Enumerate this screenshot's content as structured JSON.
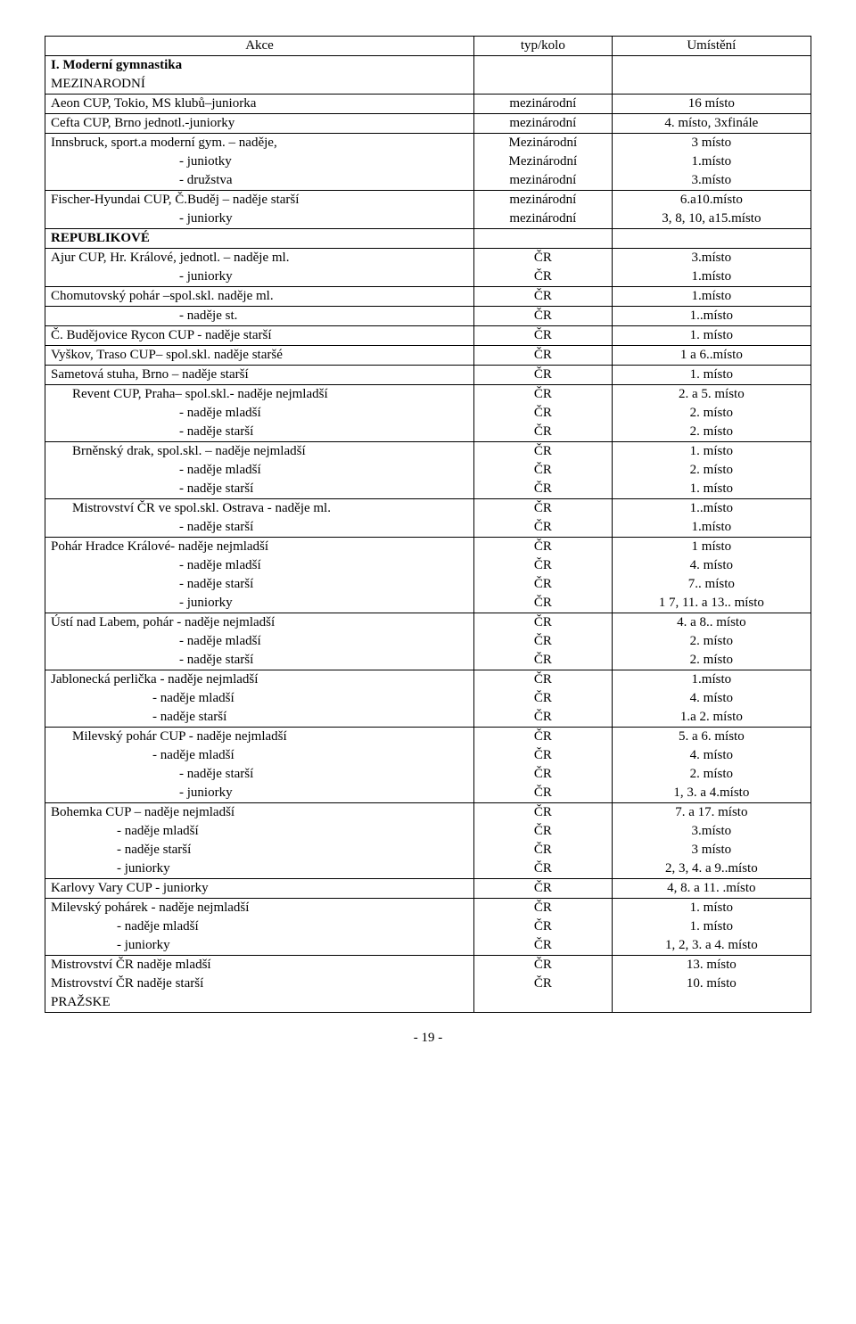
{
  "header": {
    "c1": "Akce",
    "c2": "typ/kolo",
    "c3": "Umístění"
  },
  "section1_line1": "I. Moderní gymnastika",
  "section1_line2": "MEZINARODNÍ",
  "rows": {
    "r1": {
      "a": "Aeon CUP, Tokio, MS klubů–juniorka",
      "b": "mezinárodní",
      "c": "16 místo"
    },
    "r2": {
      "a": "Cefta CUP, Brno jednotl.-juniorky",
      "b": "mezinárodní",
      "c": "4. místo, 3xfinále"
    },
    "r3": {
      "a": "Innsbruck, sport.a moderní gym. – naděje,",
      "b": "Mezinárodní",
      "c": "3  místo"
    },
    "r3b": {
      "a": "-    juniotky",
      "b": "Mezinárodní",
      "c": "1.místo"
    },
    "r3c": {
      "a": "-    družstva",
      "b": "mezinárodní",
      "c": "3.místo"
    },
    "r4": {
      "a": "Fischer-Hyundai CUP, Č.Buděj – naděje starší",
      "b": "mezinárodní",
      "c": "6.a10.místo"
    },
    "r4b": {
      "a": "- juniorky",
      "b": "mezinárodní",
      "c": "3, 8, 10, a15.místo"
    },
    "rep": "REPUBLIKOVÉ",
    "r5": {
      "a": "Ajur CUP, Hr. Králové, jednotl. – naděje ml.",
      "b": "ČR",
      "c": "3.místo"
    },
    "r5b": {
      "a": "- juniorky",
      "b": "ČR",
      "c": "1.místo"
    },
    "r6": {
      "a": "Chomutovský pohár –spol.skl.  naděje ml.",
      "b": "ČR",
      "c": "1.místo"
    },
    "r6b": {
      "a": "- naděje st.",
      "b": "ČR",
      "c": "1..místo"
    },
    "r7": {
      "a": "Č. Budějovice Rycon CUP  - naděje starší",
      "b": "ČR",
      "c": "1. místo"
    },
    "r8": {
      "a": "Vyškov, Traso CUP– spol.skl.  naděje staršé",
      "b": "ČR",
      "c": "1 a 6..místo"
    },
    "r9": {
      "a": "Sametová stuha, Brno – naděje starší",
      "b": "ČR",
      "c": "1. místo"
    },
    "r10": {
      "a": "Revent CUP, Praha– spol.skl.- naděje nejmladší",
      "b": "ČR",
      "c": "2. a 5. místo"
    },
    "r10b": {
      "a": "-    naděje mladší",
      "b": "ČR",
      "c": "2. místo"
    },
    "r10c": {
      "a": "-    naděje starší",
      "b": "ČR",
      "c": "2. místo"
    },
    "r11": {
      "a": "Brněnský drak, spol.skl. – naděje nejmladší",
      "b": "ČR",
      "c": "1. místo"
    },
    "r11b": {
      "a": "-    naděje mladší",
      "b": "ČR",
      "c": "2. místo"
    },
    "r11c": {
      "a": "-    naděje starší",
      "b": "ČR",
      "c": "1. místo"
    },
    "r12": {
      "a": "Mistrovství ČR ve spol.skl. Ostrava - naděje ml.",
      "b": "ČR",
      "c": "1..místo"
    },
    "r12b": {
      "a": "-    naděje starší",
      "b": "ČR",
      "c": "1.místo"
    },
    "r13": {
      "a": "Pohár Hradce Králové- naděje nejmladší",
      "b": "ČR",
      "c": "1 místo"
    },
    "r13b": {
      "a": "-    naděje mladší",
      "b": "ČR",
      "c": "4. místo"
    },
    "r13c": {
      "a": "-    naděje starší",
      "b": "ČR",
      "c": "7.. místo"
    },
    "r13d": {
      "a": "-    juniorky",
      "b": "ČR",
      "c": "1 7, 11. a 13.. místo"
    },
    "r14": {
      "a": "Ústí nad Labem, pohár - naděje nejmladší",
      "b": "ČR",
      "c": "4. a 8.. místo"
    },
    "r14b": {
      "a": "-    naděje mladší",
      "b": "ČR",
      "c": "2. místo"
    },
    "r14c": {
      "a": "-    naděje starší",
      "b": "ČR",
      "c": "2. místo"
    },
    "r15": {
      "a": "Jablonecká perlička    - naděje nejmladší",
      "b": "ČR",
      "c": "1.místo"
    },
    "r15b": {
      "a": "- naděje mladší",
      "b": "ČR",
      "c": "4. místo"
    },
    "r15c": {
      "a": "- naděje starší",
      "b": "ČR",
      "c": "1.a 2. místo"
    },
    "r16": {
      "a": "Milevský pohár CUP - naděje nejmladší",
      "b": "ČR",
      "c": "5. a  6. místo"
    },
    "r16b": {
      "a": "- naděje mladší",
      "b": "ČR",
      "c": "4. místo"
    },
    "r16c": {
      "a": "-    naděje starší",
      "b": "ČR",
      "c": "2. místo"
    },
    "r16d": {
      "a": "-    juniorky",
      "b": "ČR",
      "c": "1, 3. a 4.místo"
    },
    "r17": {
      "a": "Bohemka CUP – naděje nejmladší",
      "b": "ČR",
      "c": "7. a 17. místo"
    },
    "r17b": {
      "a": "- naděje mladší",
      "b": "ČR",
      "c": "3.místo"
    },
    "r17c": {
      "a": "- naděje starší",
      "b": "ČR",
      "c": "3 místo"
    },
    "r17d": {
      "a": "- juniorky",
      "b": "ČR",
      "c": "2, 3,  4. a 9..místo"
    },
    "r18": {
      "a": "Karlovy Vary CUP - juniorky",
      "b": "ČR",
      "c": "4, 8. a 11. .místo"
    },
    "r19": {
      "a": "Milevský pohárek - naděje nejmladší",
      "b": "ČR",
      "c": "1. místo"
    },
    "r19b": {
      "a": "- naděje mladší",
      "b": "ČR",
      "c": "1. místo"
    },
    "r19c": {
      "a": "- juniorky",
      "b": "ČR",
      "c": "1, 2,  3. a 4. místo"
    },
    "r20": {
      "a": "Mistrovství ČR naděje mladší",
      "b": "ČR",
      "c": "13. místo"
    },
    "r21": {
      "a": "Mistrovství ČR naděje starší",
      "b": "ČR",
      "c": "10. místo"
    },
    "prazske": "PRAŽSKE"
  },
  "pagenum": "- 19 -"
}
